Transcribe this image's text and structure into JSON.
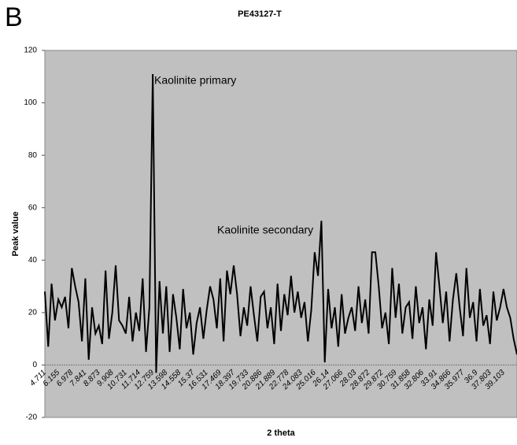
{
  "chart_data": {
    "type": "line",
    "panel_label": "B",
    "title": "PE43127-T",
    "y_label": "Peak value",
    "x_label": "2 theta",
    "annotations": [
      "Kaolinite primary",
      "Kaolinite secondary"
    ],
    "color": "#000000",
    "background": "#c0c0c0",
    "ylim": [
      -20,
      120
    ],
    "yticks": [
      -20,
      0,
      20,
      40,
      60,
      80,
      100,
      120
    ],
    "grid": false,
    "categories": [
      "4.711",
      null,
      null,
      null,
      "6.155",
      null,
      null,
      null,
      "6.978",
      null,
      null,
      null,
      "7.841",
      null,
      null,
      null,
      "8.873",
      null,
      null,
      null,
      "9.908",
      null,
      null,
      null,
      "10.731",
      null,
      null,
      null,
      "11.714",
      null,
      null,
      null,
      "12.759",
      null,
      null,
      null,
      "13.598",
      null,
      null,
      null,
      "14.558",
      null,
      null,
      null,
      "15.37",
      null,
      null,
      null,
      "16.531",
      null,
      null,
      null,
      "17.469",
      null,
      null,
      null,
      "18.397",
      null,
      null,
      null,
      "19.733",
      null,
      null,
      null,
      "20.886",
      null,
      null,
      null,
      "21.889",
      null,
      null,
      null,
      "22.778",
      null,
      null,
      null,
      "24.083",
      null,
      null,
      null,
      "25.016",
      null,
      null,
      null,
      "26.14",
      null,
      null,
      null,
      "27.066",
      null,
      null,
      null,
      "28.03",
      null,
      null,
      null,
      "28.872",
      null,
      null,
      null,
      "29.872",
      null,
      null,
      null,
      "30.759",
      null,
      null,
      null,
      "31.858",
      null,
      null,
      null,
      "32.806",
      null,
      null,
      null,
      "33.91",
      null,
      null,
      null,
      "34.866",
      null,
      null,
      null,
      "35.977",
      null,
      null,
      null,
      "36.9",
      null,
      null,
      null,
      "37.803",
      null,
      null,
      null,
      "39.103",
      null,
      null,
      null,
      null
    ],
    "values": [
      28,
      7,
      31,
      17,
      25,
      22,
      26,
      14,
      37,
      30,
      24,
      9,
      33,
      2,
      22,
      12,
      15,
      8,
      36,
      10,
      20,
      38,
      17,
      15,
      12,
      26,
      9,
      20,
      13,
      33,
      5,
      22,
      111,
      -3,
      32,
      12,
      30,
      5,
      27,
      18,
      6,
      29,
      14,
      20,
      4,
      16,
      22,
      10,
      21,
      30,
      25,
      14,
      33,
      9,
      36,
      27,
      38,
      27,
      11,
      22,
      15,
      30,
      19,
      9,
      26,
      28,
      14,
      22,
      8,
      31,
      13,
      27,
      19,
      34,
      20,
      28,
      18,
      24,
      9,
      21,
      43,
      34,
      55,
      1,
      29,
      14,
      22,
      7,
      27,
      12,
      18,
      22,
      13,
      30,
      16,
      25,
      12,
      43,
      43,
      30,
      14,
      20,
      8,
      37,
      18,
      31,
      12,
      22,
      24,
      10,
      30,
      16,
      22,
      6,
      25,
      15,
      43,
      30,
      16,
      28,
      9,
      25,
      35,
      22,
      11,
      37,
      18,
      24,
      9,
      29,
      15,
      19,
      8,
      28,
      17,
      22,
      29,
      22,
      18,
      10,
      4
    ]
  }
}
